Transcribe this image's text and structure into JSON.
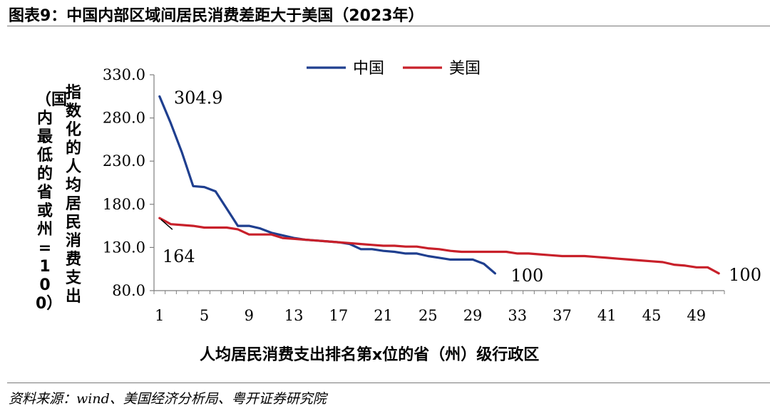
{
  "figure": {
    "title": "图表9：中国内部区域间居民消费差距大于美国（2023年）",
    "source": "资料来源：wind、美国经济分析局、粤开证券研究院"
  },
  "chart_data": {
    "type": "line",
    "xlabel": "人均居民消费支出排名第x位的省（州）级行政区",
    "ylabel_line1": "指数化的人均居民消费支出",
    "ylabel_line2": "（国内最低的省或州=100）",
    "ylim": [
      80,
      330
    ],
    "xlim": [
      1,
      51
    ],
    "yticks": [
      80,
      130,
      180,
      230,
      280,
      330
    ],
    "ytick_labels": [
      "80.0",
      "130.0",
      "180.0",
      "230.0",
      "280.0",
      "330.0"
    ],
    "xticks": [
      1,
      5,
      9,
      13,
      17,
      21,
      25,
      29,
      33,
      37,
      41,
      45,
      49
    ],
    "xtick_labels": [
      "1",
      "5",
      "9",
      "13",
      "17",
      "21",
      "25",
      "29",
      "33",
      "37",
      "41",
      "45",
      "49"
    ],
    "grid": false,
    "legend_position": "top-center",
    "series": [
      {
        "name": "中国",
        "color": "#1f3f8f",
        "x": [
          1,
          2,
          3,
          4,
          5,
          6,
          7,
          8,
          9,
          10,
          11,
          12,
          13,
          14,
          15,
          16,
          17,
          18,
          19,
          20,
          21,
          22,
          23,
          24,
          25,
          26,
          27,
          28,
          29,
          30,
          31
        ],
        "values": [
          304.9,
          274,
          240,
          201,
          200,
          195,
          175,
          155,
          155,
          152,
          147,
          144,
          141,
          139,
          138,
          137,
          136,
          134,
          128,
          128,
          126,
          125,
          123,
          123,
          120,
          118,
          116,
          116,
          116,
          111,
          100
        ]
      },
      {
        "name": "美国",
        "color": "#c8202a",
        "x": [
          1,
          2,
          3,
          4,
          5,
          6,
          7,
          8,
          9,
          10,
          11,
          12,
          13,
          14,
          15,
          16,
          17,
          18,
          19,
          20,
          21,
          22,
          23,
          24,
          25,
          26,
          27,
          28,
          29,
          30,
          31,
          32,
          33,
          34,
          35,
          36,
          37,
          38,
          39,
          40,
          41,
          42,
          43,
          44,
          45,
          46,
          47,
          48,
          49,
          50,
          51
        ],
        "values": [
          164,
          157,
          156,
          155,
          153,
          153,
          153,
          151,
          145,
          145,
          145,
          141,
          140,
          139,
          138,
          137,
          136,
          135,
          134,
          133,
          132,
          132,
          131,
          131,
          129,
          128,
          126,
          125,
          125,
          125,
          125,
          125,
          123,
          123,
          122,
          121,
          120,
          120,
          120,
          119,
          118,
          117,
          116,
          115,
          114,
          113,
          110,
          109,
          107,
          107,
          100
        ]
      }
    ],
    "annotations": [
      {
        "text": "304.9",
        "series": 0,
        "x": 1
      },
      {
        "text": "164",
        "series": 1,
        "x": 1
      },
      {
        "text": "100",
        "series": 0,
        "x": 31
      },
      {
        "text": "100",
        "series": 1,
        "x": 51
      }
    ]
  }
}
